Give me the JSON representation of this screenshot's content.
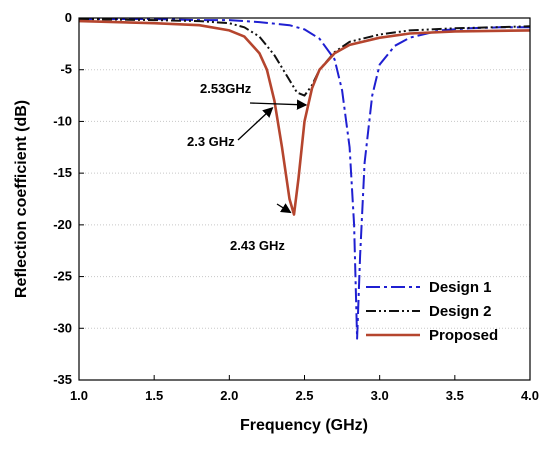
{
  "chart_data": {
    "type": "line",
    "xlabel": "Frequency (GHz)",
    "ylabel": "Reflection coefficient (dB)",
    "xlim": [
      1.0,
      4.0
    ],
    "ylim": [
      -35,
      0
    ],
    "xticks": [
      1.0,
      1.5,
      2.0,
      2.5,
      3.0,
      3.5,
      4.0
    ],
    "xtick_labels": [
      "1.0",
      "1.5",
      "2.0",
      "2.5",
      "3.0",
      "3.5",
      "4.0"
    ],
    "yticks": [
      0,
      -5,
      -10,
      -15,
      -20,
      -25,
      -30,
      -35
    ],
    "ytick_labels": [
      "0",
      "-5",
      "-10",
      "-15",
      "-20",
      "-25",
      "-30",
      "-35"
    ],
    "grid": "horizontal dotted",
    "legend_position": "bottom-right",
    "series": [
      {
        "name": "Design 1",
        "color": "#1f1fd1",
        "style": "dash-dot",
        "x": [
          1.0,
          1.5,
          1.8,
          2.0,
          2.2,
          2.4,
          2.5,
          2.6,
          2.7,
          2.75,
          2.8,
          2.83,
          2.85,
          2.87,
          2.9,
          2.95,
          3.0,
          3.1,
          3.2,
          3.4,
          3.6,
          3.8,
          4.0
        ],
        "y": [
          -0.1,
          -0.1,
          -0.2,
          -0.2,
          -0.4,
          -0.7,
          -1.1,
          -2.0,
          -4.0,
          -7.0,
          -12.5,
          -20.0,
          -31.0,
          -23.0,
          -14.0,
          -7.5,
          -4.5,
          -2.7,
          -1.9,
          -1.2,
          -1.0,
          -0.9,
          -0.9
        ]
      },
      {
        "name": "Design 2",
        "color": "#111111",
        "style": "dash-dot-dot",
        "x": [
          1.0,
          1.5,
          1.8,
          2.0,
          2.1,
          2.2,
          2.3,
          2.4,
          2.45,
          2.5,
          2.55,
          2.6,
          2.7,
          2.8,
          3.0,
          3.2,
          3.5,
          4.0
        ],
        "y": [
          -0.1,
          -0.2,
          -0.3,
          -0.5,
          -0.9,
          -1.8,
          -3.6,
          -6.0,
          -7.2,
          -7.5,
          -6.5,
          -5.0,
          -3.3,
          -2.3,
          -1.6,
          -1.2,
          -1.0,
          -0.8
        ]
      },
      {
        "name": "Proposed",
        "color": "#b5452e",
        "style": "solid",
        "x": [
          1.0,
          1.5,
          1.8,
          2.0,
          2.1,
          2.2,
          2.25,
          2.3,
          2.35,
          2.4,
          2.43,
          2.46,
          2.5,
          2.55,
          2.6,
          2.7,
          2.8,
          3.0,
          3.2,
          3.5,
          4.0
        ],
        "y": [
          -0.3,
          -0.5,
          -0.7,
          -1.2,
          -1.8,
          -3.4,
          -5.0,
          -8.0,
          -12.5,
          -17.5,
          -19.0,
          -15.5,
          -10.0,
          -6.8,
          -5.0,
          -3.4,
          -2.6,
          -1.9,
          -1.5,
          -1.3,
          -1.2
        ]
      }
    ],
    "annotations": [
      {
        "text": "2.53GHz",
        "x": 2.53,
        "y": -7.0
      },
      {
        "text": "2.3 GHz",
        "x": 2.3,
        "y": -9.0
      },
      {
        "text": "2.43 GHz",
        "x": 2.43,
        "y": -19.0
      }
    ]
  }
}
